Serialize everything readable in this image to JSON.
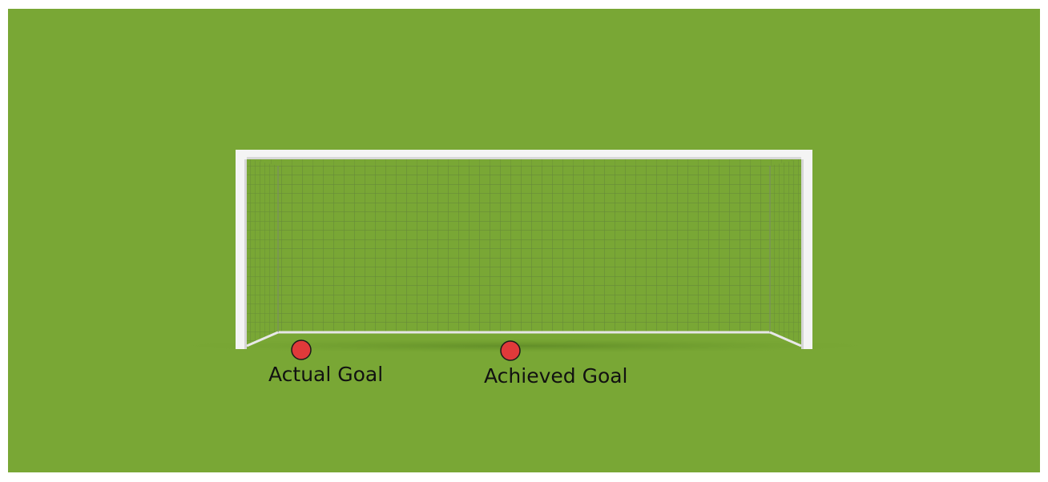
{
  "scene": {
    "field_color": "#79a735",
    "frame_color": "#f2f2f2",
    "net_color": "#5e7a3b",
    "marker_color": "#e03a3a",
    "marker_outline": "#1a1a1a"
  },
  "markers": {
    "actual_goal": "Actual Goal",
    "achieved_goal": "Achieved Goal"
  }
}
